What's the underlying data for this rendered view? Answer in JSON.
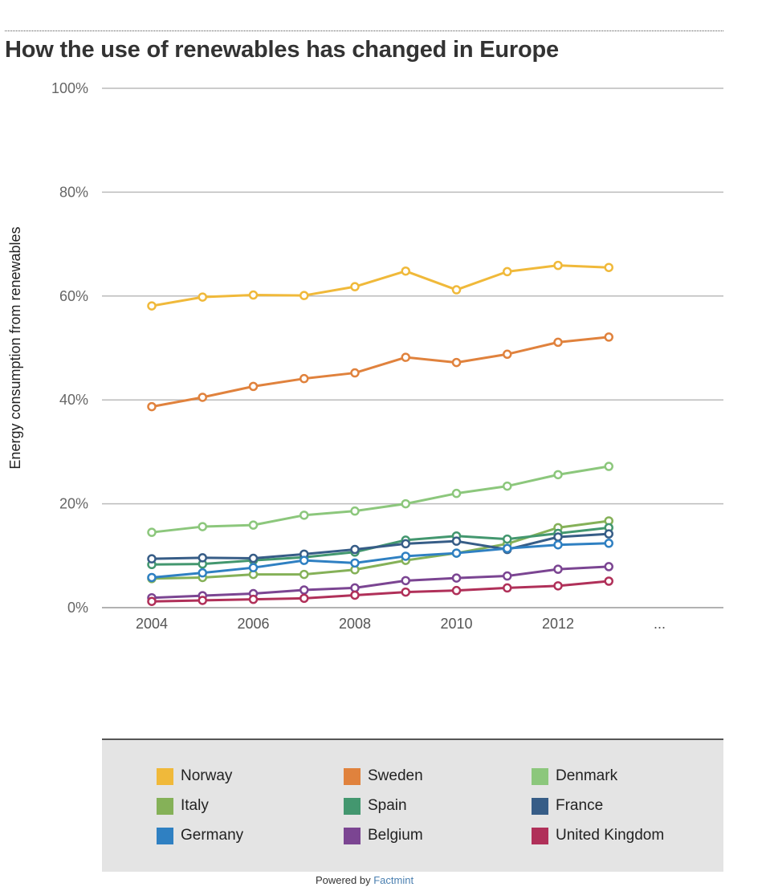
{
  "header": {
    "title": "How the use of renewables has changed in Europe"
  },
  "footer": {
    "powered_by": "Powered by",
    "brand": "Factmint"
  },
  "chart_data": {
    "type": "line",
    "title": "How the use of renewables has changed in Europe",
    "xlabel": "",
    "ylabel": "Energy consumption from renewables",
    "ylim": [
      0,
      100
    ],
    "yticks": [
      {
        "value": 0,
        "label": "0%"
      },
      {
        "value": 20,
        "label": "20%"
      },
      {
        "value": 40,
        "label": "40%"
      },
      {
        "value": 60,
        "label": "60%"
      },
      {
        "value": 80,
        "label": "80%"
      },
      {
        "value": 100,
        "label": "100%"
      }
    ],
    "xlim": [
      2004,
      2014
    ],
    "xticks": [
      {
        "value": 2004,
        "label": "2004"
      },
      {
        "value": 2006,
        "label": "2006"
      },
      {
        "value": 2008,
        "label": "2008"
      },
      {
        "value": 2010,
        "label": "2010"
      },
      {
        "value": 2012,
        "label": "2012"
      },
      {
        "value": 2014,
        "label": "..."
      }
    ],
    "x": [
      2004,
      2005,
      2006,
      2007,
      2008,
      2009,
      2010,
      2011,
      2012,
      2013
    ],
    "grid": true,
    "legend_position": "bottom",
    "series": [
      {
        "name": "Norway",
        "color": "#f0b93a",
        "values": [
          58.1,
          59.8,
          60.2,
          60.1,
          61.8,
          64.8,
          61.2,
          64.7,
          65.9,
          65.5
        ]
      },
      {
        "name": "Sweden",
        "color": "#e0823d",
        "values": [
          38.7,
          40.5,
          42.6,
          44.1,
          45.2,
          48.2,
          47.2,
          48.8,
          51.1,
          52.1
        ]
      },
      {
        "name": "Denmark",
        "color": "#8cc77c",
        "values": [
          14.5,
          15.6,
          15.9,
          17.8,
          18.6,
          20.0,
          22.0,
          23.4,
          25.6,
          27.2
        ]
      },
      {
        "name": "Italy",
        "color": "#85b158",
        "values": [
          5.6,
          5.8,
          6.4,
          6.4,
          7.3,
          9.1,
          10.5,
          12.3,
          15.4,
          16.7
        ]
      },
      {
        "name": "Spain",
        "color": "#43976f",
        "values": [
          8.3,
          8.4,
          9.1,
          9.7,
          10.7,
          13.0,
          13.8,
          13.2,
          14.3,
          15.4
        ]
      },
      {
        "name": "France",
        "color": "#375d87",
        "values": [
          9.4,
          9.6,
          9.5,
          10.3,
          11.2,
          12.3,
          12.8,
          11.2,
          13.6,
          14.2
        ]
      },
      {
        "name": "Germany",
        "color": "#2f80c2",
        "values": [
          5.8,
          6.7,
          7.7,
          9.1,
          8.6,
          9.9,
          10.5,
          11.4,
          12.1,
          12.4
        ]
      },
      {
        "name": "Belgium",
        "color": "#7b4592",
        "values": [
          1.9,
          2.3,
          2.7,
          3.4,
          3.8,
          5.2,
          5.7,
          6.1,
          7.4,
          7.9
        ]
      },
      {
        "name": "United Kingdom",
        "color": "#b03059",
        "values": [
          1.2,
          1.4,
          1.6,
          1.8,
          2.4,
          3.0,
          3.3,
          3.8,
          4.2,
          5.1
        ]
      }
    ]
  }
}
